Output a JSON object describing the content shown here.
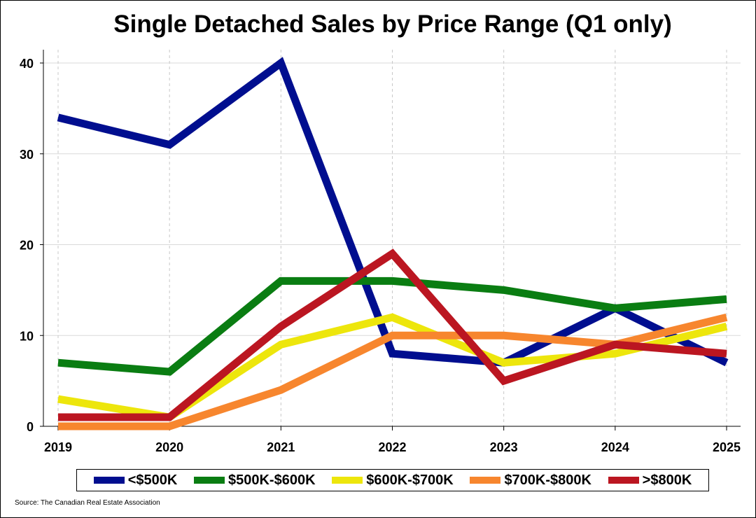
{
  "chart_data": {
    "type": "line",
    "title": "Single Detached Sales by Price Range (Q1 only)",
    "xlabel": "",
    "ylabel": "",
    "x": [
      "2019",
      "2020",
      "2021",
      "2022",
      "2023",
      "2024",
      "2025"
    ],
    "ylim": [
      0,
      42
    ],
    "yticks": [
      "0",
      "10",
      "20",
      "30",
      "40"
    ],
    "grid": true,
    "legend_position": "bottom",
    "series": [
      {
        "name": "<$500K",
        "color": "#000e8f",
        "values": [
          34,
          31,
          40,
          8,
          7,
          13,
          7
        ]
      },
      {
        "name": "$500K-$600K",
        "color": "#0a7d12",
        "values": [
          7,
          6,
          16,
          16,
          15,
          13,
          14
        ]
      },
      {
        "name": "$600K-$700K",
        "color": "#ede60c",
        "values": [
          3,
          1,
          9,
          12,
          7,
          8,
          11
        ]
      },
      {
        "name": "$700K-$800K",
        "color": "#f7862e",
        "values": [
          0,
          0,
          4,
          10,
          10,
          9,
          12
        ]
      },
      {
        "name": ">$800K",
        "color": "#bb1621",
        "values": [
          1,
          1,
          11,
          19,
          5,
          9,
          8
        ]
      }
    ]
  },
  "source": "Source: The Canadian Real Estate Association"
}
